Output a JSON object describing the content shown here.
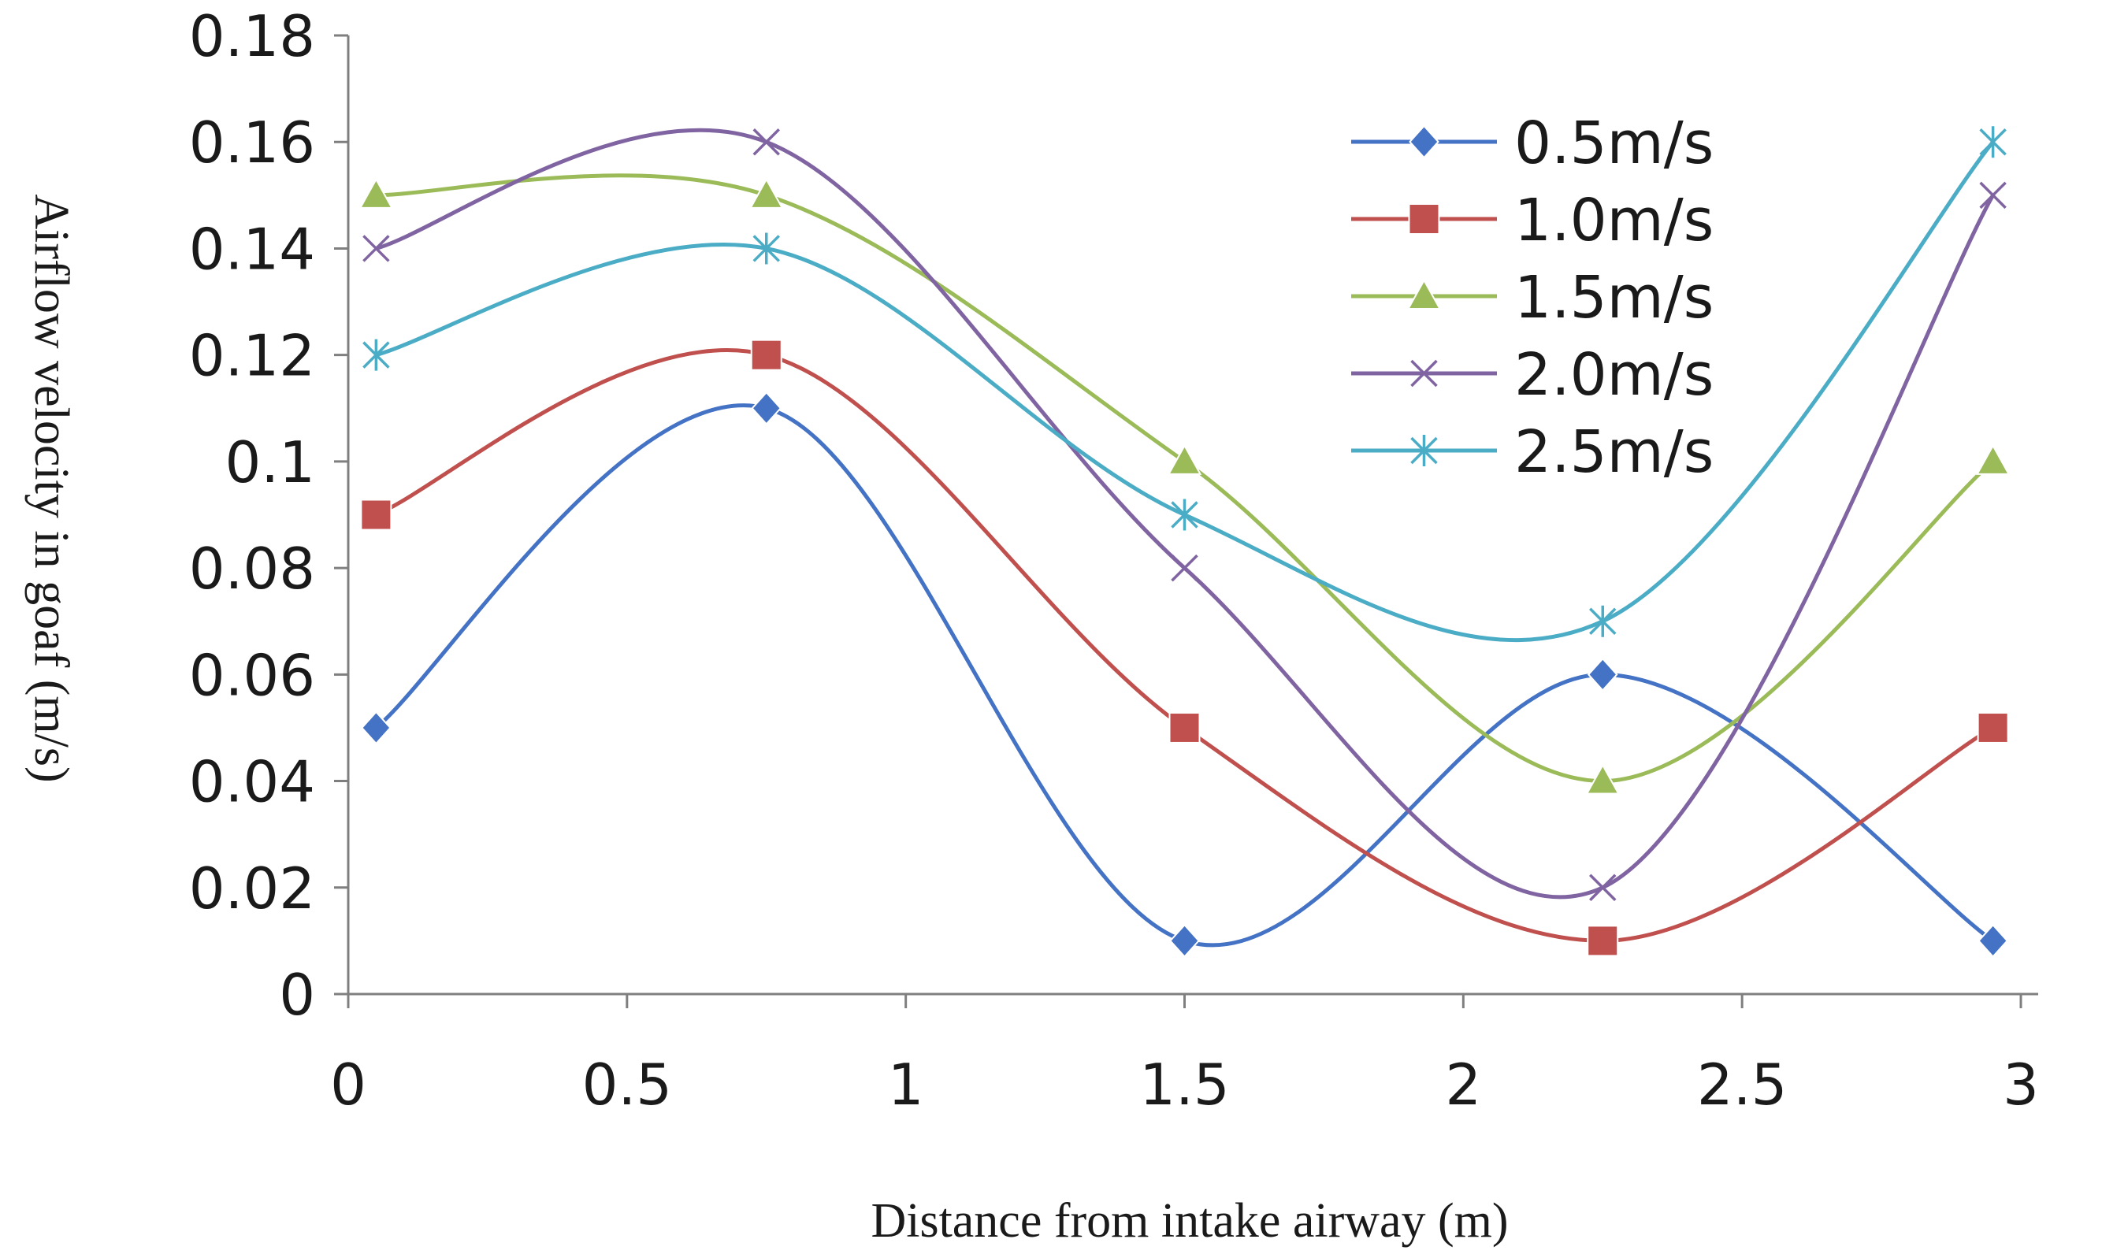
{
  "chart_data": {
    "type": "line",
    "title": "",
    "xlabel": "Distance from intake airway (m)",
    "ylabel": "Airflow velocity in goaf (m/s)",
    "xlim": [
      0,
      3
    ],
    "ylim": [
      0,
      0.18
    ],
    "x_ticks": [
      "0",
      "0.5",
      "1",
      "1.5",
      "2",
      "2.5",
      "3"
    ],
    "y_ticks": [
      "0",
      "0.02",
      "0.04",
      "0.06",
      "0.08",
      "0.1",
      "0.12",
      "0.14",
      "0.16",
      "0.18"
    ],
    "grid": false,
    "smooth": true,
    "legend_position": "top-right",
    "x": [
      0.05,
      0.75,
      1.5,
      2.25,
      2.95
    ],
    "series": [
      {
        "name": "0.5m/s",
        "color": "#4472C4",
        "marker": "diamond",
        "values": [
          0.05,
          0.11,
          0.01,
          0.06,
          0.01
        ]
      },
      {
        "name": "1.0m/s",
        "color": "#C0504D",
        "marker": "square",
        "values": [
          0.09,
          0.12,
          0.05,
          0.01,
          0.05
        ]
      },
      {
        "name": "1.5m/s",
        "color": "#9BBB59",
        "marker": "triangle",
        "values": [
          0.15,
          0.15,
          0.1,
          0.04,
          0.1
        ]
      },
      {
        "name": "2.0m/s",
        "color": "#8064A2",
        "marker": "x",
        "values": [
          0.14,
          0.16,
          0.08,
          0.02,
          0.15
        ]
      },
      {
        "name": "2.5m/s",
        "color": "#4BACC6",
        "marker": "star",
        "values": [
          0.12,
          0.14,
          0.09,
          0.07,
          0.16
        ]
      }
    ]
  }
}
